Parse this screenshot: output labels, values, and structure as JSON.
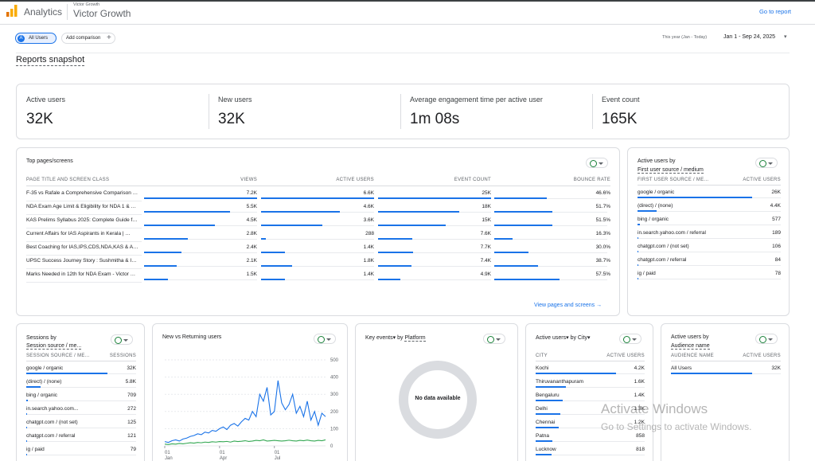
{
  "header": {
    "product": "Analytics",
    "account_small": "Victor Growth",
    "account": "Victor Growth",
    "go_to_report": "Go to report"
  },
  "filters": {
    "segment_letter": "A",
    "segment": "All Users",
    "add_comparison": "Add comparison",
    "date_preset": "This year (Jan - Today)",
    "date_range": "Jan 1 - Sep 24, 2025"
  },
  "title": "Reports snapshot",
  "kpis": [
    {
      "label": "Active users",
      "value": "32K"
    },
    {
      "label": "New users",
      "value": "32K"
    },
    {
      "label": "Average engagement time per active user",
      "value": "1m 08s"
    },
    {
      "label": "Event count",
      "value": "165K"
    }
  ],
  "top_pages": {
    "title": "Top pages/screens",
    "columns": [
      "PAGE TITLE AND SCREEN CLASS",
      "VIEWS",
      "ACTIVE USERS",
      "EVENT COUNT",
      "BOUNCE RATE"
    ],
    "rows": [
      [
        "F-35 vs Rafale a Comprehensive Comparison …",
        "7.2K",
        "6.6K",
        "25K",
        "46.6%"
      ],
      [
        "NDA Exam Age Limit & Eligibility for NDA 1 & …",
        "5.5K",
        "4.6K",
        "18K",
        "51.7%"
      ],
      [
        "KAS Prelims Syllabus 2025: Complete Guide f…",
        "4.5K",
        "3.6K",
        "15K",
        "51.5%"
      ],
      [
        "Current Affairs for IAS Aspirants in Kerala | …",
        "2.8K",
        "288",
        "7.6K",
        "16.3%"
      ],
      [
        "Best Coaching for IAS,IPS,CDS,NDA,KAS & A…",
        "2.4K",
        "1.4K",
        "7.7K",
        "30.0%"
      ],
      [
        "UPSC Success Journey Story : Sushmitha & I…",
        "2.1K",
        "1.8K",
        "7.4K",
        "38.7%"
      ],
      [
        "Marks Needed in 12th for NDA Exam - Victor …",
        "1.5K",
        "1.4K",
        "4.9K",
        "57.5%"
      ]
    ],
    "link": "View pages and screens"
  },
  "first_source": {
    "title": "Active users by",
    "subtitle": "First user source / medium",
    "columns": [
      "FIRST USER SOURCE / ME...",
      "ACTIVE USERS"
    ],
    "rows": [
      [
        "google / organic",
        "26K"
      ],
      [
        "(direct) / (none)",
        "4.4K"
      ],
      [
        "bing / organic",
        "577"
      ],
      [
        "in.search.yahoo.com / referral",
        "189"
      ],
      [
        "chatgpt.com / (not set)",
        "106"
      ],
      [
        "chatgpt.com / referral",
        "84"
      ],
      [
        "ig / paid",
        "78"
      ]
    ]
  },
  "sessions": {
    "title": "Sessions by",
    "subtitle": "Session source / me...",
    "columns": [
      "SESSION SOURCE / ME...",
      "SESSIONS"
    ],
    "rows": [
      [
        "google / organic",
        "32K"
      ],
      [
        "(direct) / (none)",
        "5.8K"
      ],
      [
        "bing / organic",
        "709"
      ],
      [
        "in.search.yahoo.com...",
        "272"
      ],
      [
        "chatgpt.com / (not set)",
        "125"
      ],
      [
        "chatgpt.com / referral",
        "121"
      ],
      [
        "ig / paid",
        "79"
      ]
    ]
  },
  "new_vs_returning": {
    "title": "New vs Returning users",
    "chart": {
      "type": "line",
      "xlim": [
        0,
        44
      ],
      "xticks": [
        {
          "value": 0,
          "label": "01"
        },
        {
          "value": 15,
          "label": "01"
        },
        {
          "value": 30,
          "label": "01"
        }
      ],
      "xtick_sublabels": [
        "Jan",
        "Apr",
        "Jul"
      ],
      "ylim": [
        0,
        500
      ],
      "yticks": [
        0,
        100,
        200,
        300,
        400,
        500
      ],
      "series": [
        {
          "color": "#1a73e8",
          "values": [
            25,
            20,
            30,
            35,
            28,
            40,
            45,
            55,
            60,
            70,
            65,
            80,
            75,
            90,
            85,
            100,
            110,
            95,
            120,
            130,
            115,
            140,
            160,
            150,
            200,
            170,
            300,
            260,
            340,
            180,
            200,
            380,
            250,
            210,
            240,
            300,
            190,
            230,
            170,
            260,
            150,
            200,
            120,
            190,
            170
          ]
        },
        {
          "color": "#34a853",
          "values": [
            10,
            8,
            12,
            10,
            14,
            12,
            15,
            18,
            16,
            20,
            18,
            22,
            20,
            24,
            22,
            25,
            24,
            26,
            22,
            28,
            25,
            27,
            30,
            26,
            28,
            32,
            30,
            35,
            28,
            30,
            32,
            30,
            28,
            30,
            33,
            30,
            28,
            32,
            30,
            34,
            30,
            28,
            32,
            30,
            35
          ]
        }
      ]
    }
  },
  "key_events": {
    "title": "Key events",
    "by": "by",
    "dimension": "Platform",
    "empty": "No data available"
  },
  "city": {
    "title": "Active users",
    "by": "by City",
    "columns": [
      "CITY",
      "ACTIVE USERS"
    ],
    "rows": [
      [
        "Kochi",
        "4.2K"
      ],
      [
        "Thiruvananthapuram",
        "1.6K"
      ],
      [
        "Bengaluru",
        "1.4K"
      ],
      [
        "Delhi",
        "1.3K"
      ],
      [
        "Chennai",
        "1.2K"
      ],
      [
        "Patna",
        "858"
      ],
      [
        "Lucknow",
        "818"
      ]
    ]
  },
  "audience": {
    "title": "Active users by",
    "subtitle": "Audience name",
    "columns": [
      "AUDIENCE NAME",
      "ACTIVE USERS"
    ],
    "rows": [
      [
        "All Users",
        "32K"
      ]
    ]
  },
  "watermark": {
    "title": "Activate Windows",
    "text": "Go to Settings to activate Windows."
  }
}
